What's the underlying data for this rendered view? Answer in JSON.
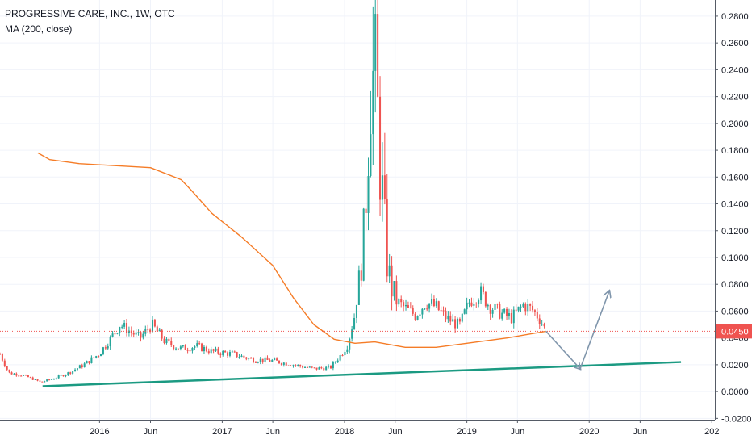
{
  "legend": {
    "title": "PROGRESSIVE CARE, INC., 1W, OTC",
    "indicator": "MA (200, close)"
  },
  "colors": {
    "background": "#ffffff",
    "grid": "#f0f3fa",
    "axis_text": "#131722",
    "bull": "#26a69a",
    "bear": "#ef5350",
    "ma_line": "#f57c27",
    "trendline": "#1b9a82",
    "arrow": "#7f95ab",
    "price_line": "#ef5350",
    "price_label_bg": "#ef5350"
  },
  "chart_data": {
    "type": "candlestick",
    "title": "PROGRESSIVE CARE, INC., 1W, OTC",
    "x_tick_labels": [
      "2016",
      "Jun",
      "2017",
      "Jun",
      "2018",
      "Jun",
      "2019",
      "Jun",
      "2020",
      "Jun",
      "202"
    ],
    "x_ticks": [
      "2016-01-01",
      "2016-06-01",
      "2017-01-01",
      "2017-06-01",
      "2018-01-01",
      "2018-06-01",
      "2019-01-01",
      "2019-06-01",
      "2020-01-01",
      "2020-06-01",
      "2021-01-01"
    ],
    "xlim": [
      "2015-03-10",
      "2021-01-10"
    ],
    "y_tick_labels": [
      "0.2800",
      "0.2600",
      "0.2400",
      "0.2200",
      "0.2000",
      "0.1800",
      "0.1600",
      "0.1400",
      "0.1200",
      "0.1000",
      "0.0800",
      "0.0600",
      "0.0400",
      "0.0200",
      "0.0000",
      "-0.0200"
    ],
    "ylim": [
      -0.021,
      0.292
    ],
    "last_price": 0.045,
    "last_price_label": "0.0450",
    "anchors": [
      [
        "2015-03-10",
        0.028
      ],
      [
        "2015-04-05",
        0.014
      ],
      [
        "2015-05-20",
        0.012
      ],
      [
        "2015-07-10",
        0.007
      ],
      [
        "2015-08-20",
        0.01
      ],
      [
        "2015-10-01",
        0.014
      ],
      [
        "2015-11-15",
        0.02
      ],
      [
        "2015-12-30",
        0.028
      ],
      [
        "2016-02-10",
        0.042
      ],
      [
        "2016-03-01",
        0.05
      ],
      [
        "2016-04-01",
        0.045
      ],
      [
        "2016-05-01",
        0.04
      ],
      [
        "2016-06-05",
        0.05
      ],
      [
        "2016-07-15",
        0.037
      ],
      [
        "2016-09-01",
        0.032
      ],
      [
        "2016-10-15",
        0.034
      ],
      [
        "2016-12-01",
        0.03
      ],
      [
        "2017-02-01",
        0.028
      ],
      [
        "2017-04-01",
        0.024
      ],
      [
        "2017-06-01",
        0.023
      ],
      [
        "2017-08-01",
        0.02
      ],
      [
        "2017-10-01",
        0.017
      ],
      [
        "2017-11-20",
        0.018
      ],
      [
        "2017-12-20",
        0.027
      ],
      [
        "2018-01-10",
        0.035
      ],
      [
        "2018-02-01",
        0.058
      ],
      [
        "2018-03-01",
        0.12
      ],
      [
        "2018-03-20",
        0.225
      ],
      [
        "2018-04-05",
        0.245
      ],
      [
        "2018-04-15",
        0.17
      ],
      [
        "2018-04-25",
        0.145
      ],
      [
        "2018-05-10",
        0.09
      ],
      [
        "2018-06-01",
        0.068
      ],
      [
        "2018-07-01",
        0.062
      ],
      [
        "2018-08-01",
        0.057
      ],
      [
        "2018-09-01",
        0.067
      ],
      [
        "2018-10-01",
        0.063
      ],
      [
        "2018-11-01",
        0.055
      ],
      [
        "2018-12-10",
        0.049
      ],
      [
        "2019-01-10",
        0.068
      ],
      [
        "2019-02-10",
        0.074
      ],
      [
        "2019-03-10",
        0.064
      ],
      [
        "2019-04-15",
        0.058
      ],
      [
        "2019-05-15",
        0.055
      ],
      [
        "2019-06-20",
        0.065
      ],
      [
        "2019-07-20",
        0.06
      ],
      [
        "2019-08-10",
        0.053
      ],
      [
        "2019-08-25",
        0.045
      ]
    ],
    "ma_anchors": [
      [
        "2015-07-01",
        0.178
      ],
      [
        "2015-08-05",
        0.173
      ],
      [
        "2015-11-01",
        0.17
      ],
      [
        "2016-06-01",
        0.167
      ],
      [
        "2016-09-01",
        0.158
      ],
      [
        "2016-10-01",
        0.15
      ],
      [
        "2016-12-01",
        0.133
      ],
      [
        "2017-03-01",
        0.115
      ],
      [
        "2017-06-01",
        0.094
      ],
      [
        "2017-08-01",
        0.07
      ],
      [
        "2017-10-01",
        0.05
      ],
      [
        "2017-12-01",
        0.039
      ],
      [
        "2018-02-01",
        0.036
      ],
      [
        "2018-04-01",
        0.037
      ],
      [
        "2018-07-01",
        0.033
      ],
      [
        "2018-10-01",
        0.033
      ],
      [
        "2019-01-01",
        0.036
      ],
      [
        "2019-05-01",
        0.04
      ],
      [
        "2019-08-25",
        0.045
      ]
    ],
    "trendline": [
      [
        "2015-07-15",
        0.004
      ],
      [
        "2020-10-01",
        0.022
      ]
    ],
    "projection_arrows": [
      [
        [
          "2019-08-25",
          0.045
        ],
        [
          "2019-12-05",
          0.017
        ]
      ],
      [
        [
          "2019-12-05",
          0.017
        ],
        [
          "2020-03-01",
          0.075
        ]
      ]
    ],
    "grid": true
  }
}
